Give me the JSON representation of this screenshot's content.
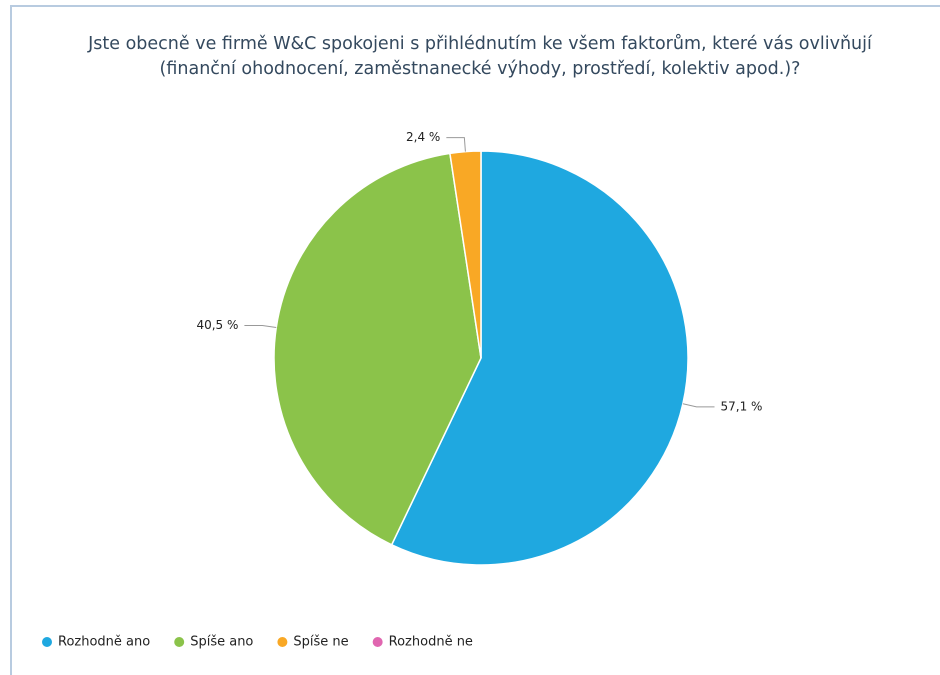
{
  "chart_data": {
    "type": "pie",
    "title": "Jste obecně ve firmě W&C spokojeni s přihlédnutím ke všem faktorům, které vás ovlivňují (finanční ohodnocení, zaměstnanecké výhody, prostředí, kolektiv apod.)?",
    "categories": [
      "Rozhodně ano",
      "Spíše ano",
      "Spíše ne",
      "Rozhodně ne"
    ],
    "values": [
      57.1,
      40.5,
      2.4,
      0
    ],
    "value_labels": [
      "57,1 %",
      "40,5 %",
      "2,4 %",
      null
    ],
    "colors": [
      "#1fa8e0",
      "#8bc34a",
      "#f9a825",
      "#e066b0"
    ],
    "legend": "bottom"
  }
}
